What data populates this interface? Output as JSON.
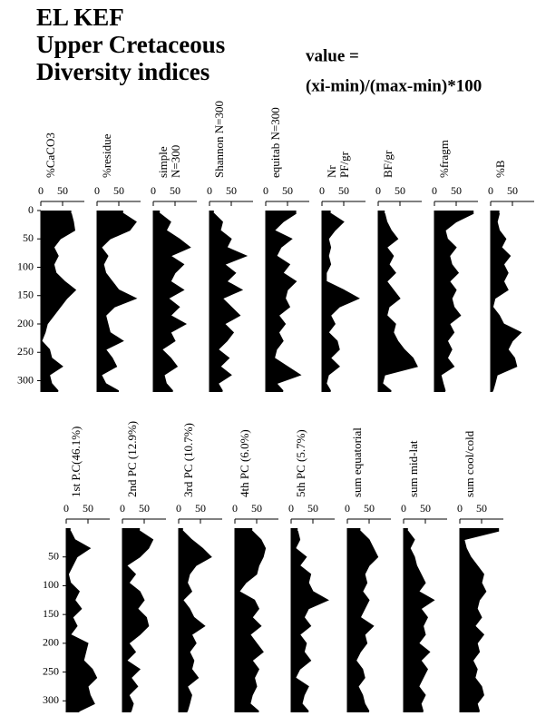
{
  "header": {
    "title": [
      "EL KEF",
      "Upper Cretaceous",
      "Diversity indices"
    ],
    "formula": [
      "value =",
      "(xi-min)/(max-min)*100"
    ]
  },
  "chart_data": [
    {
      "type": "area",
      "label": [
        "%CaCO3"
      ],
      "color": "#000000",
      "xlim": [
        0,
        100
      ],
      "xticks": [
        0,
        50
      ],
      "ylim": [
        0,
        320
      ],
      "yticks": [
        0,
        50,
        100,
        150,
        200,
        250,
        300
      ],
      "y": [
        5,
        20,
        35,
        50,
        65,
        80,
        95,
        110,
        125,
        140,
        155,
        170,
        185,
        200,
        215,
        230,
        245,
        260,
        275,
        290,
        305,
        318
      ],
      "values": [
        70,
        75,
        78,
        45,
        30,
        40,
        30,
        35,
        55,
        80,
        60,
        45,
        30,
        15,
        10,
        2,
        20,
        25,
        50,
        20,
        25,
        40
      ]
    },
    {
      "type": "area",
      "label": [
        "%residue"
      ],
      "color": "#000000",
      "xlim": [
        0,
        100
      ],
      "xticks": [
        0,
        50
      ],
      "ylim": [
        0,
        320
      ],
      "y": [
        5,
        20,
        35,
        50,
        65,
        80,
        95,
        110,
        125,
        140,
        155,
        170,
        185,
        200,
        215,
        230,
        245,
        260,
        275,
        290,
        305,
        318
      ],
      "values": [
        60,
        90,
        75,
        30,
        10,
        25,
        15,
        20,
        35,
        50,
        90,
        40,
        20,
        25,
        30,
        60,
        20,
        35,
        45,
        10,
        20,
        50
      ]
    },
    {
      "type": "area",
      "label": [
        "simple",
        "N=300"
      ],
      "color": "#000000",
      "xlim": [
        0,
        100
      ],
      "xticks": [
        0,
        50
      ],
      "ylim": [
        0,
        320
      ],
      "y": [
        5,
        20,
        35,
        50,
        65,
        80,
        95,
        110,
        125,
        140,
        155,
        170,
        185,
        200,
        215,
        230,
        245,
        260,
        275,
        290,
        305,
        318
      ],
      "values": [
        15,
        40,
        30,
        60,
        85,
        40,
        70,
        50,
        40,
        70,
        35,
        60,
        40,
        75,
        40,
        50,
        20,
        40,
        55,
        25,
        30,
        45
      ]
    },
    {
      "type": "area",
      "label": [
        "Shannon N=300"
      ],
      "color": "#000000",
      "xlim": [
        0,
        100
      ],
      "xticks": [
        0,
        50
      ],
      "ylim": [
        0,
        320
      ],
      "y": [
        5,
        20,
        35,
        50,
        65,
        80,
        95,
        110,
        125,
        140,
        155,
        170,
        185,
        200,
        215,
        230,
        245,
        260,
        275,
        290,
        305,
        318
      ],
      "values": [
        10,
        30,
        25,
        50,
        40,
        85,
        35,
        60,
        40,
        75,
        30,
        50,
        70,
        35,
        55,
        40,
        20,
        45,
        25,
        50,
        20,
        30
      ]
    },
    {
      "type": "area",
      "label": [
        "equitab N=300"
      ],
      "color": "#000000",
      "xlim": [
        0,
        100
      ],
      "xticks": [
        0,
        50
      ],
      "ylim": [
        0,
        320
      ],
      "y": [
        5,
        20,
        35,
        50,
        65,
        80,
        95,
        110,
        125,
        140,
        155,
        170,
        185,
        200,
        215,
        230,
        245,
        260,
        275,
        290,
        305,
        318
      ],
      "values": [
        70,
        40,
        20,
        60,
        35,
        25,
        55,
        40,
        70,
        50,
        45,
        55,
        30,
        45,
        30,
        40,
        25,
        20,
        50,
        80,
        25,
        40
      ]
    },
    {
      "type": "area",
      "label": [
        "Nr",
        "PF/gr"
      ],
      "color": "#000000",
      "xlim": [
        0,
        100
      ],
      "xticks": [
        0,
        50
      ],
      "ylim": [
        0,
        320
      ],
      "y": [
        5,
        20,
        35,
        50,
        65,
        80,
        95,
        110,
        125,
        140,
        155,
        170,
        185,
        200,
        215,
        230,
        245,
        260,
        275,
        290,
        305,
        318
      ],
      "values": [
        20,
        50,
        30,
        15,
        20,
        15,
        20,
        10,
        10,
        50,
        85,
        40,
        20,
        30,
        15,
        35,
        40,
        20,
        40,
        15,
        10,
        20
      ]
    },
    {
      "type": "area",
      "label": [
        "BF/gr"
      ],
      "color": "#000000",
      "xlim": [
        0,
        100
      ],
      "xticks": [
        0,
        50
      ],
      "ylim": [
        0,
        320
      ],
      "y": [
        5,
        20,
        35,
        50,
        65,
        80,
        95,
        110,
        125,
        140,
        155,
        170,
        185,
        200,
        215,
        230,
        245,
        260,
        275,
        290,
        305,
        318
      ],
      "values": [
        15,
        20,
        30,
        45,
        20,
        35,
        25,
        40,
        20,
        35,
        50,
        25,
        20,
        40,
        35,
        45,
        60,
        80,
        90,
        15,
        10,
        30
      ]
    },
    {
      "type": "area",
      "label": [
        "%fragm"
      ],
      "color": "#000000",
      "xlim": [
        0,
        100
      ],
      "xticks": [
        0,
        50
      ],
      "ylim": [
        0,
        320
      ],
      "y": [
        5,
        20,
        35,
        50,
        65,
        80,
        95,
        110,
        125,
        140,
        155,
        170,
        185,
        200,
        215,
        230,
        245,
        260,
        275,
        290,
        305,
        318
      ],
      "values": [
        90,
        50,
        25,
        30,
        50,
        35,
        40,
        55,
        35,
        50,
        40,
        45,
        60,
        35,
        45,
        30,
        40,
        30,
        45,
        15,
        20,
        25
      ]
    },
    {
      "type": "area",
      "label": [
        "%B"
      ],
      "color": "#000000",
      "xlim": [
        0,
        100
      ],
      "xticks": [
        0,
        50
      ],
      "ylim": [
        0,
        320
      ],
      "y": [
        5,
        20,
        35,
        50,
        65,
        80,
        95,
        110,
        125,
        140,
        155,
        170,
        185,
        200,
        215,
        230,
        245,
        260,
        275,
        290,
        305,
        318
      ],
      "values": [
        20,
        15,
        20,
        35,
        25,
        45,
        30,
        40,
        30,
        40,
        10,
        5,
        20,
        30,
        70,
        50,
        40,
        55,
        60,
        15,
        10,
        5
      ]
    },
    {
      "type": "area",
      "label": [
        "1st P.C(46.1%)"
      ],
      "color": "#000000",
      "xlim": [
        0,
        100
      ],
      "xticks": [
        0,
        50
      ],
      "ylim": [
        0,
        320
      ],
      "yticks": [
        50,
        100,
        150,
        200,
        250,
        300
      ],
      "y": [
        5,
        20,
        35,
        50,
        65,
        80,
        95,
        110,
        125,
        140,
        155,
        170,
        185,
        200,
        215,
        230,
        245,
        260,
        275,
        290,
        305,
        318
      ],
      "values": [
        10,
        20,
        55,
        25,
        15,
        5,
        10,
        30,
        20,
        35,
        15,
        25,
        10,
        50,
        45,
        40,
        60,
        70,
        50,
        55,
        65,
        30
      ]
    },
    {
      "type": "area",
      "label": [
        "2nd PC (12.9%)"
      ],
      "color": "#000000",
      "xlim": [
        0,
        100
      ],
      "xticks": [
        0,
        50
      ],
      "ylim": [
        0,
        320
      ],
      "y": [
        5,
        20,
        35,
        50,
        65,
        80,
        95,
        110,
        125,
        140,
        155,
        170,
        185,
        200,
        215,
        230,
        245,
        260,
        275,
        290,
        305,
        318
      ],
      "values": [
        40,
        70,
        60,
        40,
        10,
        30,
        15,
        40,
        50,
        35,
        55,
        60,
        40,
        15,
        30,
        10,
        40,
        20,
        35,
        15,
        25,
        20
      ]
    },
    {
      "type": "area",
      "label": [
        "3rd PC (10.7%)"
      ],
      "color": "#000000",
      "xlim": [
        0,
        100
      ],
      "xticks": [
        0,
        50
      ],
      "ylim": [
        0,
        320
      ],
      "y": [
        5,
        20,
        35,
        50,
        65,
        80,
        95,
        110,
        125,
        140,
        155,
        170,
        185,
        200,
        215,
        230,
        245,
        260,
        275,
        290,
        305,
        318
      ],
      "values": [
        10,
        30,
        55,
        75,
        40,
        25,
        20,
        30,
        10,
        25,
        35,
        60,
        30,
        40,
        25,
        35,
        30,
        45,
        20,
        30,
        25,
        20
      ]
    },
    {
      "type": "area",
      "label": [
        "4th PC (6.0%)"
      ],
      "color": "#000000",
      "xlim": [
        0,
        100
      ],
      "xticks": [
        0,
        50
      ],
      "ylim": [
        0,
        320
      ],
      "y": [
        5,
        20,
        35,
        50,
        65,
        80,
        95,
        110,
        125,
        140,
        155,
        170,
        185,
        200,
        215,
        230,
        245,
        260,
        275,
        290,
        305,
        318
      ],
      "values": [
        40,
        60,
        70,
        65,
        55,
        50,
        25,
        10,
        45,
        55,
        40,
        60,
        35,
        50,
        65,
        40,
        55,
        45,
        50,
        40,
        35,
        55
      ]
    },
    {
      "type": "area",
      "label": [
        "5th PC (5.7%)"
      ],
      "color": "#000000",
      "xlim": [
        0,
        100
      ],
      "xticks": [
        0,
        50
      ],
      "ylim": [
        0,
        320
      ],
      "y": [
        5,
        20,
        35,
        50,
        65,
        80,
        95,
        110,
        125,
        140,
        155,
        170,
        185,
        200,
        215,
        230,
        245,
        260,
        275,
        290,
        305,
        318
      ],
      "values": [
        15,
        20,
        10,
        35,
        20,
        45,
        40,
        50,
        85,
        40,
        30,
        45,
        20,
        35,
        30,
        45,
        20,
        10,
        40,
        30,
        25,
        40
      ]
    },
    {
      "type": "area",
      "label": [
        "sum equatorial"
      ],
      "color": "#000000",
      "xlim": [
        0,
        100
      ],
      "xticks": [
        0,
        50
      ],
      "ylim": [
        0,
        320
      ],
      "y": [
        5,
        20,
        35,
        50,
        65,
        80,
        95,
        110,
        125,
        140,
        155,
        170,
        185,
        200,
        215,
        230,
        245,
        260,
        275,
        290,
        305,
        318
      ],
      "values": [
        30,
        50,
        60,
        70,
        50,
        40,
        45,
        35,
        50,
        40,
        30,
        60,
        40,
        45,
        30,
        20,
        35,
        40,
        25,
        35,
        40,
        50
      ]
    },
    {
      "type": "area",
      "label": [
        "sum mid-lat"
      ],
      "color": "#000000",
      "xlim": [
        0,
        100
      ],
      "xticks": [
        0,
        50
      ],
      "ylim": [
        0,
        320
      ],
      "y": [
        5,
        20,
        35,
        50,
        65,
        80,
        95,
        110,
        125,
        140,
        155,
        170,
        185,
        200,
        215,
        230,
        245,
        260,
        275,
        290,
        305,
        318
      ],
      "values": [
        10,
        25,
        15,
        25,
        30,
        40,
        50,
        35,
        70,
        40,
        55,
        45,
        50,
        35,
        60,
        40,
        55,
        45,
        35,
        50,
        40,
        45
      ]
    },
    {
      "type": "area",
      "label": [
        "sum cool/cold"
      ],
      "color": "#000000",
      "xlim": [
        0,
        100
      ],
      "xticks": [
        0,
        50
      ],
      "ylim": [
        0,
        320
      ],
      "y": [
        5,
        20,
        35,
        50,
        65,
        80,
        95,
        110,
        125,
        140,
        155,
        170,
        185,
        200,
        215,
        230,
        245,
        260,
        275,
        290,
        305,
        318
      ],
      "values": [
        90,
        10,
        15,
        25,
        40,
        55,
        50,
        60,
        45,
        40,
        50,
        35,
        55,
        40,
        45,
        30,
        40,
        35,
        50,
        55,
        40,
        45
      ]
    }
  ]
}
